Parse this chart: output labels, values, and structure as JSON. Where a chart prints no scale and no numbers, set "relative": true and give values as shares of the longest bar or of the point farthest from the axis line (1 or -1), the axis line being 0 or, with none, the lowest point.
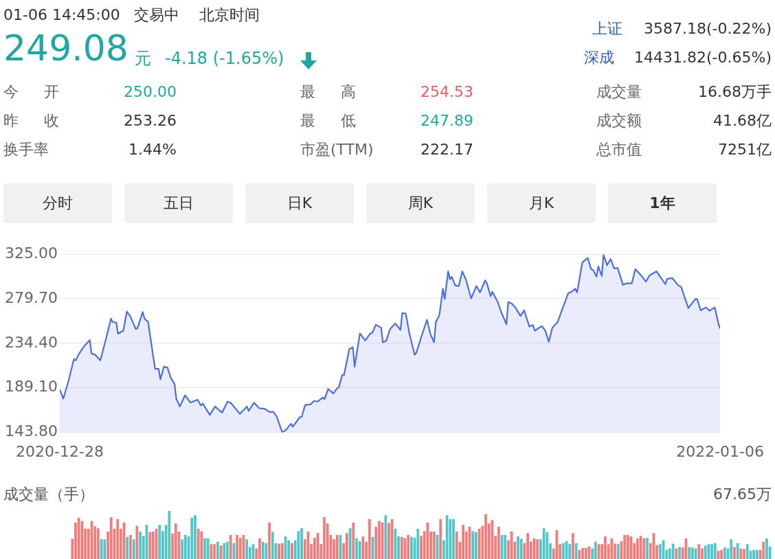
{
  "chart_data": [
    {
      "type": "other",
      "annotations": [
        "01-06 14:45:00",
        "交易中",
        "北京时间",
        "249.08",
        "元",
        "-4.18 (-1.65%)",
        "上证",
        "3587.18(-0.22%)",
        "深成",
        "14431.82(-0.65%)",
        "今 开",
        "250.00",
        "最 高",
        "254.53",
        "成交量",
        "16.68万手",
        "昨 收",
        "253.26",
        "最 低",
        "247.89",
        "成交额",
        "41.68亿",
        "换手率",
        "1.44%",
        "市盈(TTM)",
        "222.17",
        "总市值",
        "7251亿",
        "分时",
        "五日",
        "日K",
        "周K",
        "月K",
        "1年"
      ]
    },
    {
      "type": "area",
      "color": "#4a6fdc",
      "grid": "y",
      "xlim": [
        "2020-12-28",
        "2022-01-06"
      ],
      "xticks": [
        "2020-12-28",
        "2022-01-06"
      ],
      "ylim": [
        143.8,
        325
      ],
      "yticks": [
        {
          "value": 143.8,
          "label": "143.80"
        },
        {
          "value": 189.1,
          "label": "189.10"
        },
        {
          "value": 234.4,
          "label": "234.40"
        },
        {
          "value": 279.7,
          "label": "279.70"
        },
        {
          "value": 325,
          "label": "325.00"
        }
      ],
      "x": [
        "2020-12-28",
        "2020-12-30",
        "2021-01-02",
        "2021-01-05",
        "2021-01-06",
        "2021-01-08",
        "2021-01-11",
        "2021-01-14",
        "2021-01-15",
        "2021-01-17",
        "2021-01-20",
        "2021-01-23",
        "2021-01-26",
        "2021-01-27",
        "2021-01-29",
        "2021-01-30",
        "2021-02-02",
        "2021-02-04",
        "2021-02-06",
        "2021-02-09",
        "2021-02-10",
        "2021-02-13",
        "2021-02-14",
        "2021-02-16",
        "2021-02-20",
        "2021-02-22",
        "2021-02-23",
        "2021-02-25",
        "2021-02-27",
        "2021-03-01",
        "2021-03-03",
        "2021-03-04",
        "2021-03-06",
        "2021-03-09",
        "2021-03-12",
        "2021-03-16",
        "2021-03-18",
        "2021-03-19",
        "2021-03-23",
        "2021-03-26",
        "2021-03-28",
        "2021-03-30",
        "2021-04-02",
        "2021-04-04",
        "2021-04-09",
        "2021-04-13",
        "2021-04-14",
        "2021-04-17",
        "2021-04-20",
        "2021-04-23",
        "2021-04-26",
        "2021-04-28",
        "2021-04-30",
        "2021-05-03",
        "2021-05-05",
        "2021-05-08",
        "2021-05-09",
        "2021-05-13",
        "2021-05-14",
        "2021-05-16",
        "2021-05-19",
        "2021-05-21",
        "2021-05-23",
        "2021-05-26",
        "2021-05-27",
        "2021-05-29",
        "2021-06-01",
        "2021-06-03",
        "2021-06-04",
        "2021-06-06",
        "2021-06-07",
        "2021-06-10",
        "2021-06-12",
        "2021-06-13",
        "2021-06-16",
        "2021-06-19",
        "2021-06-22",
        "2021-06-23",
        "2021-06-25",
        "2021-06-28",
        "2021-06-29",
        "2021-07-01",
        "2021-07-03",
        "2021-07-06",
        "2021-07-09",
        "2021-07-10",
        "2021-07-12",
        "2021-07-14",
        "2021-07-17",
        "2021-07-18",
        "2021-07-21",
        "2021-07-24",
        "2021-07-26",
        "2021-07-28",
        "2021-07-29",
        "2021-07-31",
        "2021-08-02",
        "2021-08-03",
        "2021-08-05",
        "2021-08-06",
        "2021-08-07",
        "2021-08-09",
        "2021-08-11",
        "2021-08-13",
        "2021-08-15",
        "2021-08-18",
        "2021-08-21",
        "2021-08-23",
        "2021-08-26",
        "2021-08-27",
        "2021-08-29",
        "2021-08-30",
        "2021-09-02",
        "2021-09-04",
        "2021-09-07",
        "2021-09-08",
        "2021-09-10",
        "2021-09-12",
        "2021-09-15",
        "2021-09-17",
        "2021-09-20",
        "2021-09-22",
        "2021-09-23",
        "2021-09-27",
        "2021-09-29",
        "2021-10-01",
        "2021-10-03",
        "2021-10-06",
        "2021-10-09",
        "2021-10-12",
        "2021-10-14",
        "2021-10-16",
        "2021-10-17",
        "2021-10-20",
        "2021-10-23",
        "2021-10-25",
        "2021-10-26",
        "2021-10-28",
        "2021-10-29",
        "2021-10-31",
        "2021-11-01",
        "2021-11-03",
        "2021-11-05",
        "2021-11-07",
        "2021-11-09",
        "2021-11-12",
        "2021-11-14",
        "2021-11-17",
        "2021-11-19",
        "2021-11-22",
        "2021-11-25",
        "2021-11-27",
        "2021-12-01",
        "2021-12-06",
        "2021-12-07",
        "2021-12-10",
        "2021-12-13",
        "2021-12-15",
        "2021-12-19",
        "2021-12-23",
        "2021-12-24",
        "2021-12-26",
        "2021-12-29",
        "2021-12-31",
        "2022-01-03",
        "2022-01-05",
        "2022-01-06"
      ],
      "values": [
        187.3,
        178.1,
        196.4,
        218.2,
        217,
        223.9,
        231.9,
        237.6,
        223.9,
        222.7,
        217,
        237.6,
        259.3,
        255.9,
        255.4,
        244,
        247.2,
        266.7,
        261.6,
        249,
        249.5,
        266.2,
        259.3,
        256.4,
        208.3,
        208.3,
        197.6,
        210.6,
        209.7,
        198.7,
        193,
        178.1,
        170.1,
        181.5,
        174,
        177,
        171.2,
        173.1,
        161.6,
        170.1,
        166.7,
        163.9,
        175.1,
        173.5,
        162.6,
        170.1,
        165.5,
        174,
        168.3,
        167.8,
        164.4,
        164.8,
        159.4,
        143.8,
        146.1,
        152.5,
        149.5,
        159.4,
        159.4,
        171.7,
        172.2,
        175.8,
        175.1,
        179.2,
        177.6,
        187.9,
        183.4,
        188.4,
        189.5,
        202.1,
        202.1,
        228.4,
        230.3,
        210.6,
        244.5,
        237.1,
        244.5,
        244.9,
        253.2,
        250.2,
        235.3,
        237.1,
        248.6,
        254.5,
        247.9,
        265,
        264.5,
        244.5,
        222.7,
        225,
        242.1,
        258.2,
        243.3,
        235.3,
        255.9,
        262.8,
        289.8,
        279.3,
        307.4,
        299.4,
        302.1,
        293,
        292.6,
        307.4,
        299.4,
        279.9,
        292.6,
        286.1,
        298.3,
        294.8,
        282.2,
        286.8,
        276.5,
        266.2,
        253.6,
        276.3,
        274.7,
        270.8,
        262.1,
        267.8,
        251.3,
        252.9,
        247.2,
        251.8,
        247.2,
        235.8,
        250.2,
        255.9,
        270.8,
        285.2,
        286.8,
        289.8,
        286.1,
        316.5,
        321.1,
        309.6,
        309,
        302.1,
        312.6,
        302.8,
        324.1,
        313.6,
        320,
        310.4,
        310.9,
        293.7,
        295.3,
        295.3,
        309.6,
        303.9,
        297,
        303.4,
        307.4,
        294.4,
        299.8,
        300.6,
        293.7,
        291.4,
        270.1,
        279.3,
        279.3,
        267.8,
        270.8,
        267.4,
        270.8,
        254.8,
        249.1
      ]
    },
    {
      "type": "bar",
      "title": "成交量（手）",
      "annotations": [
        "67.65万"
      ],
      "relative": true,
      "categories": [
        null,
        null,
        null,
        null,
        null,
        null,
        null,
        null,
        null,
        null,
        null,
        null,
        null,
        null,
        null,
        null,
        null,
        null,
        null,
        null,
        null,
        null,
        null,
        null,
        null,
        null,
        null,
        null,
        null,
        null,
        null,
        null,
        null,
        null,
        null,
        null,
        null,
        null,
        null,
        null,
        null,
        null,
        null,
        null,
        null,
        null,
        null,
        null,
        null,
        null,
        null,
        null,
        null,
        null,
        null,
        null,
        null,
        null,
        null,
        null,
        null,
        null,
        null,
        null,
        null,
        null,
        null,
        null,
        null,
        null,
        null,
        null,
        null,
        null,
        null,
        null,
        null,
        null,
        null,
        null,
        null,
        null,
        null,
        null,
        null,
        null,
        null,
        null,
        null,
        null,
        null,
        null,
        null,
        null,
        null,
        null,
        null,
        null,
        null,
        null,
        null,
        null,
        null,
        null,
        null,
        null,
        null,
        null,
        null,
        null,
        null,
        null,
        null,
        null,
        null,
        null,
        null,
        null,
        null,
        null,
        null,
        null,
        null,
        null,
        null,
        null,
        null,
        null,
        null,
        null,
        null,
        null,
        null,
        null,
        null,
        null,
        null,
        null,
        null,
        null,
        null,
        null,
        null,
        null,
        null,
        null,
        null,
        null,
        null,
        null,
        null,
        null,
        null,
        null,
        null,
        null,
        null,
        null,
        null,
        null,
        null,
        null,
        null,
        null,
        null,
        null,
        null,
        null,
        null,
        null,
        null,
        null,
        null,
        null,
        null,
        null,
        null,
        null,
        null,
        null,
        null,
        null,
        null,
        null,
        null,
        null,
        null,
        null,
        null,
        null,
        null,
        null,
        null,
        null,
        null,
        null,
        null,
        null,
        null,
        null,
        null,
        null,
        null,
        null,
        null,
        null,
        null,
        null,
        null,
        null,
        null,
        null,
        null,
        null,
        null,
        null,
        null
      ],
      "values": [
        0.42,
        0.76,
        0.86,
        0.79,
        0.63,
        0.63,
        0.79,
        0.68,
        0.64,
        0.41,
        0.41,
        0.57,
        0.87,
        0.63,
        0.83,
        0.63,
        0.76,
        0.46,
        0.5,
        0.41,
        0.69,
        0.57,
        0.48,
        0.71,
        0.56,
        0.57,
        0.63,
        0.71,
        0.58,
        0.71,
        1,
        0.53,
        0.74,
        0.57,
        0.41,
        0.5,
        0.47,
        0.86,
        0.91,
        0.63,
        0.57,
        0.43,
        0.43,
        0.31,
        0.31,
        0.36,
        0.28,
        0.33,
        0.36,
        0.5,
        0.33,
        0.5,
        0.44,
        0.5,
        0.41,
        0.25,
        0.31,
        0.22,
        0.43,
        0.36,
        0.33,
        0.76,
        0.57,
        0.33,
        0.32,
        0.33,
        0.47,
        0.39,
        0.33,
        0.39,
        0.58,
        0.64,
        0.41,
        0.57,
        0.31,
        0.44,
        0.54,
        0.31,
        0.87,
        0.74,
        0.5,
        0.41,
        0.5,
        0.5,
        0.33,
        0.54,
        0.64,
        0.76,
        0.43,
        0.37,
        0.47,
        0.36,
        0.83,
        0.46,
        0.67,
        0.79,
        0.76,
        0.91,
        0.75,
        0.83,
        0.63,
        0.47,
        0.46,
        0.43,
        0.5,
        0.46,
        0.44,
        0.63,
        0.48,
        0.58,
        0.76,
        0.57,
        0.57,
        0.5,
        0.83,
        0.39,
        0.91,
        0.83,
        0.83,
        0.57,
        0.36,
        0.71,
        0.57,
        0.67,
        0.58,
        0.56,
        0.63,
        0.69,
        0.93,
        0.74,
        0.81,
        0.48,
        0.67,
        0.5,
        0.5,
        0.39,
        0.57,
        0.36,
        0.47,
        0.42,
        0.33,
        0.54,
        0.36,
        0.43,
        0.41,
        0.41,
        0.64,
        0.56,
        0.33,
        0.22,
        0.6,
        0.31,
        0.33,
        0.37,
        0.31,
        0.54,
        0.33,
        0.19,
        0.23,
        0.23,
        0.26,
        0.22,
        0.36,
        0.31,
        0.31,
        0.47,
        0.31,
        0.43,
        0.32,
        0.31,
        0.37,
        0.5,
        0.5,
        0.47,
        0.33,
        0.43,
        0.48,
        0.43,
        0.44,
        0.33,
        0.54,
        0.29,
        0.31,
        0.39,
        0.19,
        0.22,
        0.32,
        0.22,
        0.25,
        0.24,
        0.43,
        0.25,
        0.24,
        0.22,
        0.31,
        0.22,
        0.28,
        0.31,
        0.31,
        0.33,
        0.17,
        0.19,
        0.24,
        0.22,
        0.41,
        0.25,
        0.33,
        0.22,
        0.21,
        0.31,
        0.17,
        0.19,
        0.19,
        0.19,
        0.36,
        0.43,
        0.26
      ],
      "colors": [
        "#f27c7c",
        "#f27c7c",
        "#f27c7c",
        "#f27c7c",
        "#f27c7c",
        "#f27c7c",
        "#f27c7c",
        "#f27c7c",
        "#f27c7c",
        "#4fc7c9",
        "#4fc7c9",
        "#f27c7c",
        "#f27c7c",
        "#f27c7c",
        "#f27c7c",
        "#f27c7c",
        "#f27c7c",
        "#4fc7c9",
        "#f27c7c",
        "#4fc7c9",
        "#f27c7c",
        "#4fc7c9",
        "#4fc7c9",
        "#4fc7c9",
        "#f27c7c",
        "#f27c7c",
        "#f27c7c",
        "#4fc7c9",
        "#4fc7c9",
        "#4fc7c9",
        "#4fc7c9",
        "#f27c7c",
        "#f27c7c",
        "#f27c7c",
        "#4fc7c9",
        "#4fc7c9",
        "#4fc7c9",
        "#4fc7c9",
        "#4fc7c9",
        "#f27c7c",
        "#f27c7c",
        "#4fc7c9",
        "#4fc7c9",
        "#f27c7c",
        "#f27c7c",
        "#4fc7c9",
        "#f27c7c",
        "#4fc7c9",
        "#4fc7c9",
        "#f27c7c",
        "#4fc7c9",
        "#f27c7c",
        "#f27c7c",
        "#f27c7c",
        "#4fc7c9",
        "#4fc7c9",
        "#4fc7c9",
        "#f27c7c",
        "#f27c7c",
        "#4fc7c9",
        "#4fc7c9",
        "#f27c7c",
        "#4fc7c9",
        "#4fc7c9",
        "#f27c7c",
        "#f27c7c",
        "#4fc7c9",
        "#4fc7c9",
        "#f27c7c",
        "#4fc7c9",
        "#4fc7c9",
        "#4fc7c9",
        "#f27c7c",
        "#f27c7c",
        "#f27c7c",
        "#f27c7c",
        "#f27c7c",
        "#f27c7c",
        "#f27c7c",
        "#f27c7c",
        "#f27c7c",
        "#f27c7c",
        "#f27c7c",
        "#4fc7c9",
        "#f27c7c",
        "#f27c7c",
        "#4fc7c9",
        "#f27c7c",
        "#4fc7c9",
        "#4fc7c9",
        "#f27c7c",
        "#f27c7c",
        "#f27c7c",
        "#4fc7c9",
        "#f27c7c",
        "#f27c7c",
        "#f27c7c",
        "#4fc7c9",
        "#f27c7c",
        "#f27c7c",
        "#4fc7c9",
        "#4fc7c9",
        "#f27c7c",
        "#f27c7c",
        "#f27c7c",
        "#4fc7c9",
        "#4fc7c9",
        "#4fc7c9",
        "#f27c7c",
        "#f27c7c",
        "#f27c7c",
        "#f27c7c",
        "#f27c7c",
        "#4fc7c9",
        "#f27c7c",
        "#4fc7c9",
        "#4fc7c9",
        "#4fc7c9",
        "#4fc7c9",
        "#f27c7c",
        "#f27c7c",
        "#f27c7c",
        "#f27c7c",
        "#f27c7c",
        "#4fc7c9",
        "#4fc7c9",
        "#f27c7c",
        "#f27c7c",
        "#f27c7c",
        "#f27c7c",
        "#f27c7c",
        "#f27c7c",
        "#f27c7c",
        "#4fc7c9",
        "#4fc7c9",
        "#f27c7c",
        "#f27c7c",
        "#f27c7c",
        "#4fc7c9",
        "#4fc7c9",
        "#f27c7c",
        "#f27c7c",
        "#f27c7c",
        "#f27c7c",
        "#f27c7c",
        "#4fc7c9",
        "#4fc7c9",
        "#4fc7c9",
        "#4fc7c9",
        "#f27c7c",
        "#f27c7c",
        "#f27c7c",
        "#4fc7c9",
        "#4fc7c9",
        "#4fc7c9",
        "#f27c7c",
        "#4fc7c9",
        "#f27c7c",
        "#f27c7c",
        "#f27c7c",
        "#f27c7c",
        "#4fc7c9",
        "#4fc7c9",
        "#f27c7c",
        "#f27c7c",
        "#f27c7c",
        "#f27c7c",
        "#f27c7c",
        "#f27c7c",
        "#4fc7c9",
        "#f27c7c",
        "#f27c7c",
        "#f27c7c",
        "#f27c7c",
        "#f27c7c",
        "#f27c7c",
        "#f27c7c",
        "#f27c7c",
        "#4fc7c9",
        "#f27c7c",
        "#f27c7c",
        "#f27c7c",
        "#4fc7c9",
        "#4fc7c9",
        "#4fc7c9",
        "#4fc7c9",
        "#4fc7c9",
        "#f27c7c",
        "#4fc7c9",
        "#f27c7c",
        "#f27c7c",
        "#4fc7c9",
        "#4fc7c9",
        "#4fc7c9",
        "#f27c7c",
        "#f27c7c",
        "#4fc7c9",
        "#4fc7c9",
        "#4fc7c9",
        "#4fc7c9",
        "#f27c7c",
        "#f27c7c",
        "#4fc7c9",
        "#4fc7c9",
        "#4fc7c9",
        "#f27c7c",
        "#4fc7c9",
        "#f27c7c",
        "#f27c7c",
        "#4fc7c9",
        "#4fc7c9",
        "#4fc7c9",
        "#4fc7c9",
        "#f27c7c",
        "#f27c7c",
        "#4fc7c9",
        "#4fc7c9"
      ]
    }
  ]
}
